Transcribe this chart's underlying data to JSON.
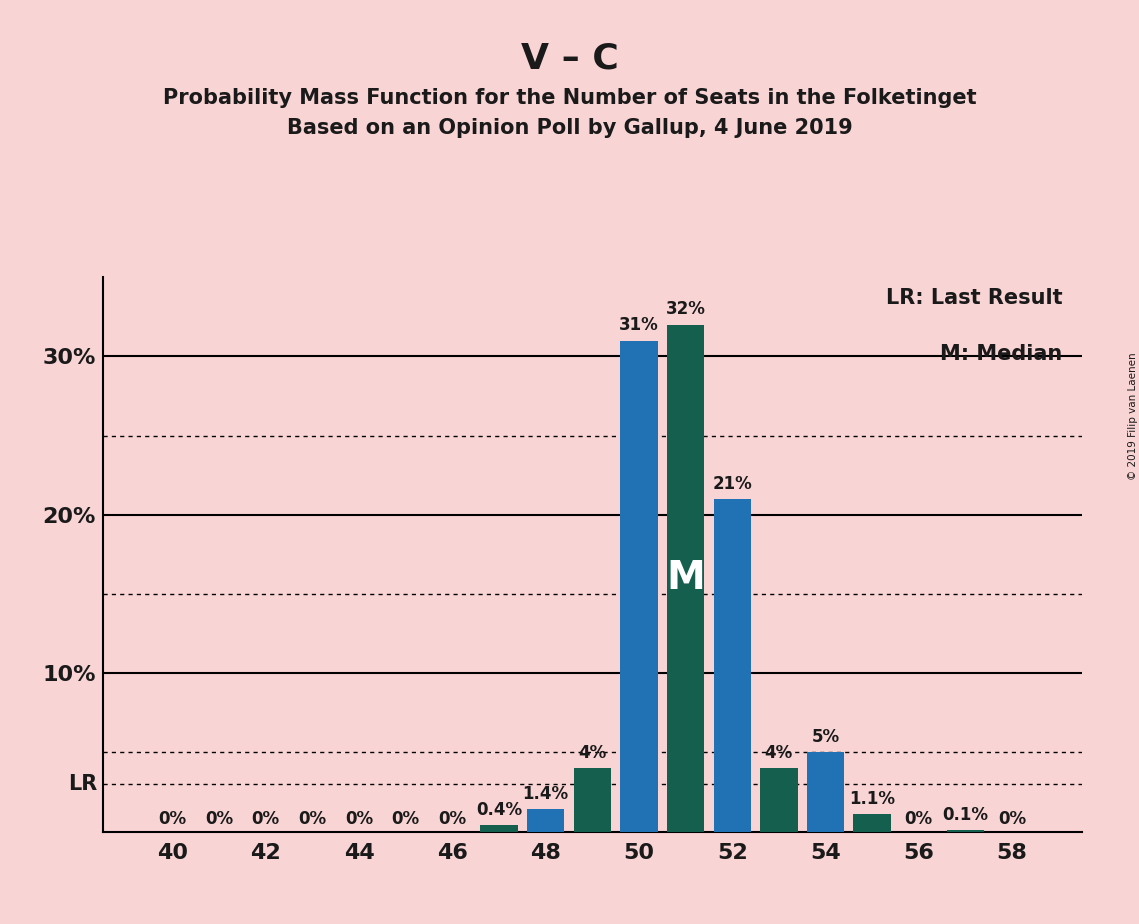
{
  "title_main": "V – C",
  "title_sub1": "Probability Mass Function for the Number of Seats in the Folketinget",
  "title_sub2": "Based on an Opinion Poll by Gallup, 4 June 2019",
  "copyright": "© 2019 Filip van Laenen",
  "background_color": "#f9d4d4",
  "seats": [
    40,
    41,
    42,
    43,
    44,
    45,
    46,
    47,
    48,
    49,
    50,
    51,
    52,
    53,
    54,
    55,
    56,
    57,
    58
  ],
  "probabilities": [
    0.0,
    0.0,
    0.0,
    0.0,
    0.0,
    0.0,
    0.0,
    0.4,
    1.4,
    4.0,
    31.0,
    32.0,
    21.0,
    4.0,
    5.0,
    1.1,
    0.0,
    0.1,
    0.0
  ],
  "labels": [
    "0%",
    "0%",
    "0%",
    "0%",
    "0%",
    "0%",
    "0%",
    "0.4%",
    "1.4%",
    "4%",
    "31%",
    "32%",
    "21%",
    "4%",
    "5%",
    "1.1%",
    "0%",
    "0.1%",
    "0%"
  ],
  "bar_colors": [
    "#2171b5",
    "#155f4e",
    "#2171b5",
    "#155f4e",
    "#2171b5",
    "#155f4e",
    "#2171b5",
    "#155f4e",
    "#2171b5",
    "#155f4e",
    "#2171b5",
    "#155f4e",
    "#2171b5",
    "#155f4e",
    "#2171b5",
    "#155f4e",
    "#2171b5",
    "#155f4e",
    "#2171b5"
  ],
  "median_seat": 51,
  "lr_line": 3.0,
  "ylim": [
    0,
    35
  ],
  "solid_lines": [
    10,
    20,
    30
  ],
  "dotted_lines": [
    5,
    15,
    25
  ],
  "xtick_positions": [
    40,
    42,
    44,
    46,
    48,
    50,
    52,
    54,
    56,
    58
  ],
  "ytick_positions": [
    10,
    20,
    30
  ],
  "ytick_labels": [
    "10%",
    "20%",
    "30%"
  ],
  "legend_text1": "LR: Last Result",
  "legend_text2": "M: Median",
  "label_fontsize": 12,
  "title_main_fontsize": 26,
  "subtitle_fontsize": 15,
  "axis_tick_fontsize": 16,
  "legend_fontsize": 15
}
